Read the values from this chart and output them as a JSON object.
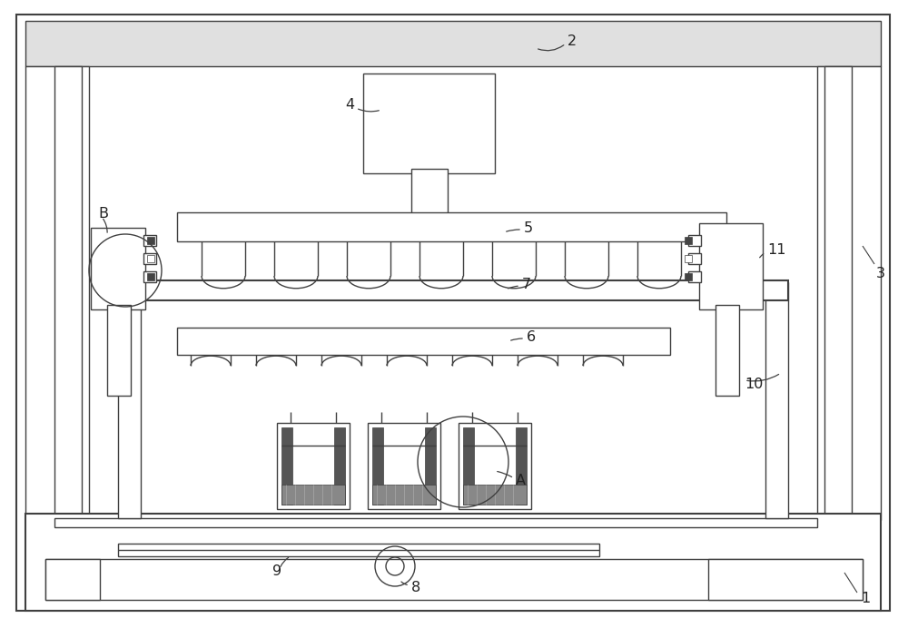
{
  "bg_color": "#ffffff",
  "line_color": "#404040",
  "lw": 1.0,
  "lw2": 1.5,
  "fig_w": 10.0,
  "fig_h": 6.81,
  "dpi": 100
}
